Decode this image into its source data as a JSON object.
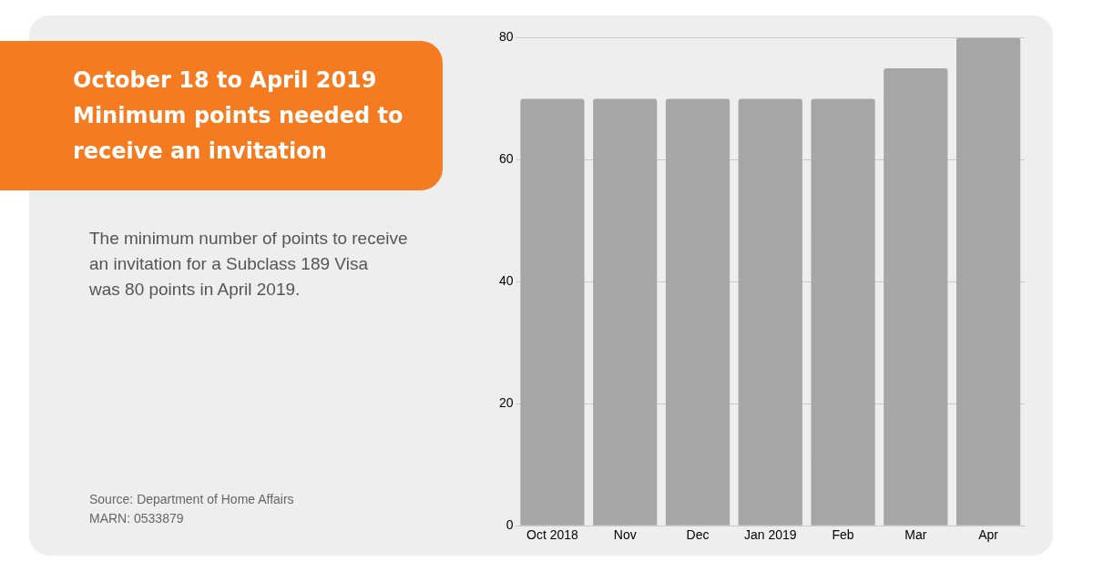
{
  "chart_data": {
    "type": "bar",
    "title": "October 18 to April 2019\nMinimum points needed to\nreceive an invitation",
    "subtitle": "The minimum number of points to receive\nan invitation for a Subclass 189 Visa\nwas 80 points in April 2019.",
    "categories": [
      "Oct 2018",
      "Nov",
      "Dec",
      "Jan 2019",
      "Feb",
      "Mar",
      "Apr"
    ],
    "values": [
      70,
      70,
      70,
      70,
      70,
      75,
      80
    ],
    "color": "#a6a6a6",
    "ylim": [
      0,
      80
    ],
    "yticks": [
      0,
      20,
      40,
      60,
      80
    ],
    "grid": "y",
    "legend": false,
    "annotations": [
      "Source: Department of Home Affairs",
      "MARN: 0533879"
    ]
  }
}
